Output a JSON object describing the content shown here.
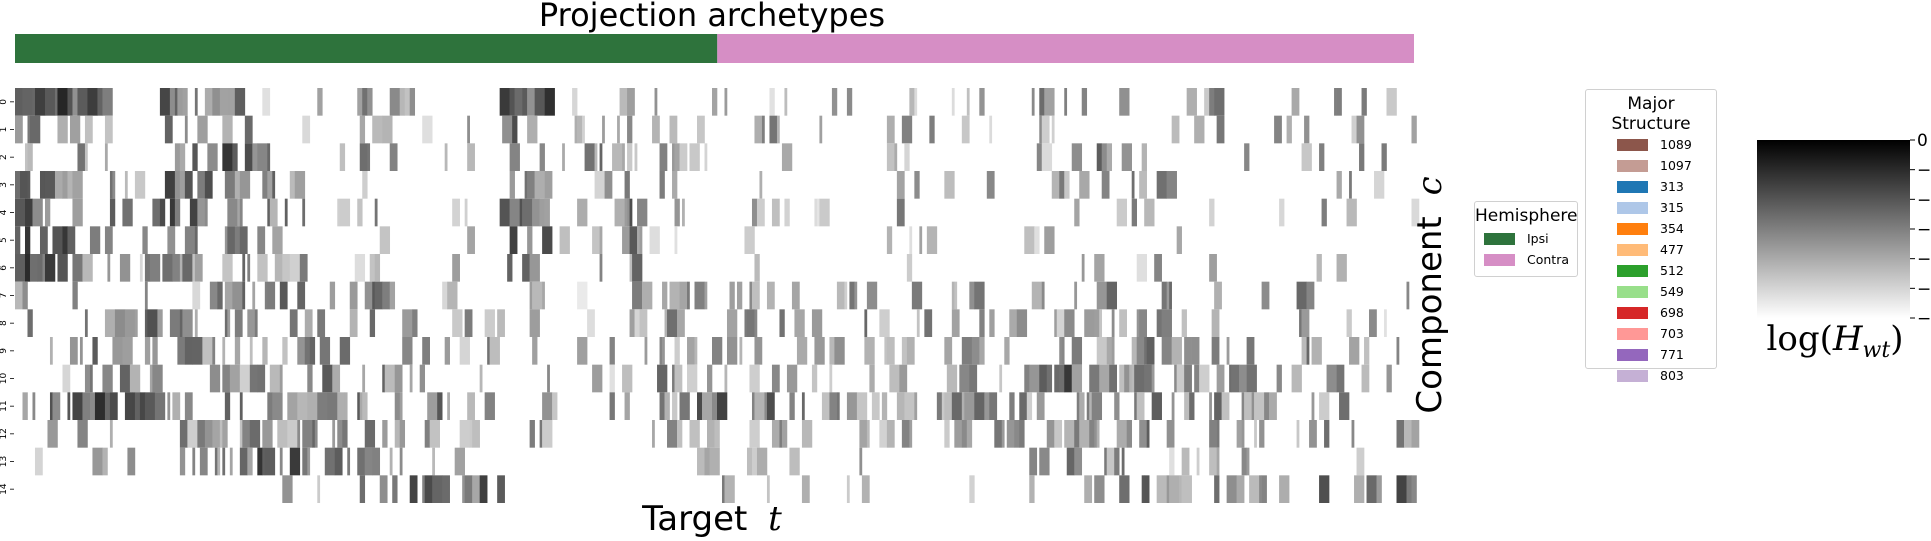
{
  "chart_data": {
    "type": "heatmap",
    "title": "Projection archetypes",
    "xlabel": "Target",
    "xlabel_var": "t",
    "ylabel": "Component",
    "ylabel_var": "c",
    "y_ticks": [
      "0",
      "1",
      "2",
      "3",
      "4",
      "5",
      "6",
      "7",
      "8",
      "9",
      "10",
      "11",
      "12",
      "13",
      "14"
    ],
    "n_targets": 560,
    "hemisphere_bar": {
      "segments": [
        {
          "name": "Ipsi",
          "fraction": 0.502,
          "color": "#2e733c"
        },
        {
          "name": "Contra",
          "fraction": 0.498,
          "color": "#d68ec5"
        }
      ]
    },
    "colorbar": {
      "label": "log(H_wt)",
      "label_prefix": "log(",
      "label_var": "H",
      "label_sub": "wt",
      "label_suffix": ")",
      "range": [
        -6,
        0
      ],
      "ticks": [
        "0",
        "−1",
        "−2",
        "−3",
        "−4",
        "−5",
        "−6"
      ],
      "tick_values": [
        0,
        -1,
        -2,
        -3,
        -4,
        -5,
        -6
      ],
      "colormap": "greys"
    },
    "heatmap_profiles": [
      [
        0.95,
        0.8,
        0.25,
        0.6,
        0.55,
        0.15,
        0.05,
        0.45,
        0.1,
        0.1,
        0.8,
        0.2,
        0.45,
        0.15,
        0.1,
        0.2,
        0.1,
        0.1,
        0.25,
        0.1,
        0.05,
        0.3,
        0.4,
        0.35,
        0.25,
        0.1,
        0.3,
        0.45,
        0.2
      ],
      [
        0.45,
        0.35,
        0.1,
        0.45,
        0.55,
        0.25,
        0.05,
        0.25,
        0.15,
        0.1,
        0.55,
        0.15,
        0.3,
        0.15,
        0.05,
        0.2,
        0.1,
        0.1,
        0.25,
        0.05,
        0.05,
        0.25,
        0.35,
        0.3,
        0.2,
        0.05,
        0.25,
        0.3,
        0.15
      ],
      [
        0.4,
        0.3,
        0.15,
        0.55,
        0.8,
        0.45,
        0.05,
        0.3,
        0.15,
        0.1,
        0.45,
        0.25,
        0.35,
        0.25,
        0.1,
        0.25,
        0.1,
        0.1,
        0.3,
        0.1,
        0.05,
        0.25,
        0.4,
        0.3,
        0.25,
        0.05,
        0.2,
        0.3,
        0.15
      ],
      [
        0.55,
        0.35,
        0.25,
        0.75,
        0.55,
        0.5,
        0.1,
        0.25,
        0.1,
        0.1,
        0.5,
        0.15,
        0.3,
        0.2,
        0.05,
        0.2,
        0.1,
        0.1,
        0.25,
        0.05,
        0.05,
        0.25,
        0.3,
        0.3,
        0.2,
        0.05,
        0.2,
        0.25,
        0.1
      ],
      [
        0.75,
        0.5,
        0.3,
        0.7,
        0.65,
        0.55,
        0.1,
        0.3,
        0.1,
        0.1,
        0.65,
        0.15,
        0.6,
        0.25,
        0.1,
        0.3,
        0.15,
        0.1,
        0.25,
        0.1,
        0.05,
        0.25,
        0.35,
        0.35,
        0.2,
        0.05,
        0.2,
        0.2,
        0.1
      ],
      [
        0.8,
        0.45,
        0.25,
        0.6,
        0.55,
        0.4,
        0.05,
        0.25,
        0.1,
        0.05,
        0.75,
        0.15,
        0.65,
        0.2,
        0.05,
        0.25,
        0.1,
        0.05,
        0.2,
        0.05,
        0.05,
        0.2,
        0.25,
        0.3,
        0.15,
        0.05,
        0.15,
        0.2,
        0.1
      ],
      [
        0.9,
        0.4,
        0.2,
        0.45,
        0.4,
        0.3,
        0.05,
        0.2,
        0.1,
        0.05,
        0.7,
        0.15,
        0.4,
        0.15,
        0.05,
        0.15,
        0.05,
        0.05,
        0.15,
        0.05,
        0.05,
        0.15,
        0.2,
        0.2,
        0.1,
        0.05,
        0.1,
        0.15,
        0.05
      ],
      [
        0.25,
        0.2,
        0.1,
        0.2,
        0.65,
        0.6,
        0.55,
        0.6,
        0.2,
        0.1,
        0.15,
        0.1,
        0.2,
        0.3,
        0.4,
        0.35,
        0.25,
        0.3,
        0.35,
        0.2,
        0.1,
        0.3,
        0.35,
        0.4,
        0.3,
        0.2,
        0.3,
        0.25,
        0.2
      ],
      [
        0.45,
        0.55,
        0.75,
        0.35,
        0.35,
        0.3,
        0.35,
        0.4,
        0.45,
        0.25,
        0.25,
        0.15,
        0.2,
        0.25,
        0.3,
        0.35,
        0.25,
        0.3,
        0.35,
        0.25,
        0.25,
        0.3,
        0.35,
        0.4,
        0.35,
        0.25,
        0.3,
        0.25,
        0.2
      ],
      [
        0.35,
        0.45,
        0.55,
        0.4,
        0.45,
        0.35,
        0.4,
        0.45,
        0.45,
        0.3,
        0.2,
        0.1,
        0.25,
        0.35,
        0.3,
        0.4,
        0.45,
        0.35,
        0.4,
        0.3,
        0.3,
        0.35,
        0.4,
        0.55,
        0.45,
        0.3,
        0.4,
        0.35,
        0.3
      ],
      [
        0.2,
        0.25,
        0.35,
        0.3,
        0.3,
        0.45,
        0.55,
        0.45,
        0.4,
        0.2,
        0.1,
        0.1,
        0.2,
        0.35,
        0.3,
        0.3,
        0.3,
        0.3,
        0.3,
        0.25,
        0.2,
        0.7,
        0.45,
        0.35,
        0.35,
        0.3,
        0.35,
        0.3,
        0.25
      ],
      [
        0.65,
        0.8,
        0.75,
        0.45,
        0.5,
        0.45,
        0.55,
        0.5,
        0.45,
        0.35,
        0.3,
        0.2,
        0.25,
        0.4,
        0.65,
        0.55,
        0.35,
        0.35,
        0.4,
        0.35,
        0.3,
        0.55,
        0.45,
        0.4,
        0.45,
        0.35,
        0.4,
        0.35,
        0.3
      ],
      [
        0.3,
        0.35,
        0.4,
        0.35,
        0.4,
        0.35,
        0.4,
        0.45,
        0.4,
        0.3,
        0.25,
        0.15,
        0.25,
        0.3,
        0.35,
        0.35,
        0.3,
        0.3,
        0.35,
        0.3,
        0.25,
        0.35,
        0.35,
        0.4,
        0.35,
        0.3,
        0.35,
        0.3,
        0.25
      ],
      [
        0.15,
        0.15,
        0.2,
        0.25,
        0.55,
        0.75,
        0.45,
        0.35,
        0.2,
        0.1,
        0.05,
        0.05,
        0.1,
        0.15,
        0.2,
        0.15,
        0.1,
        0.1,
        0.15,
        0.1,
        0.1,
        0.45,
        0.35,
        0.2,
        0.2,
        0.15,
        0.2,
        0.2,
        0.15
      ],
      [
        0.05,
        0.05,
        0.05,
        0.05,
        0.1,
        0.15,
        0.35,
        0.55,
        0.75,
        0.65,
        0.1,
        0.05,
        0.05,
        0.1,
        0.2,
        0.15,
        0.1,
        0.1,
        0.15,
        0.1,
        0.1,
        0.3,
        0.4,
        0.5,
        0.45,
        0.35,
        0.45,
        0.55,
        0.65
      ]
    ]
  },
  "legends": {
    "hemisphere": {
      "title": "Hemisphere",
      "items": [
        {
          "label": "Ipsi",
          "color": "#2e733c"
        },
        {
          "label": "Contra",
          "color": "#d68ec5"
        }
      ]
    },
    "major_structure": {
      "title": "Major Structure",
      "items": [
        {
          "label": "1089",
          "color": "#8c564b"
        },
        {
          "label": "1097",
          "color": "#c49c94"
        },
        {
          "label": "313",
          "color": "#1f77b4"
        },
        {
          "label": "315",
          "color": "#aec7e8"
        },
        {
          "label": "354",
          "color": "#ff7f0e"
        },
        {
          "label": "477",
          "color": "#ffbb78"
        },
        {
          "label": "512",
          "color": "#2ca02c"
        },
        {
          "label": "549",
          "color": "#98df8a"
        },
        {
          "label": "698",
          "color": "#d62728"
        },
        {
          "label": "703",
          "color": "#ff9896"
        },
        {
          "label": "771",
          "color": "#9467bd"
        },
        {
          "label": "803",
          "color": "#c5b0d5"
        }
      ]
    }
  }
}
